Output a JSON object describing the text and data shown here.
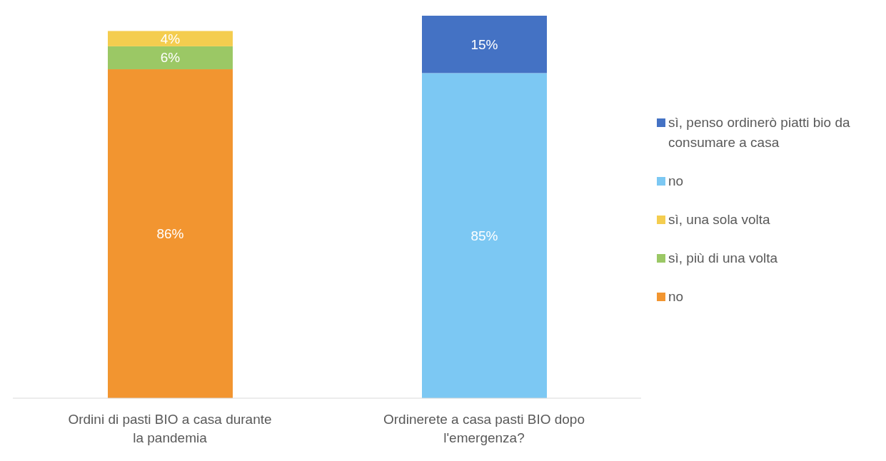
{
  "chart_data": {
    "type": "bar",
    "stacked": true,
    "categories": [
      "Ordini di pasti BIO a casa durante la pandemia",
      "Ordinerete a casa pasti BIO dopo l'emergenza?"
    ],
    "legend": "right",
    "series": [
      {
        "name": "no",
        "color": "#f29530",
        "values": [
          86,
          null
        ],
        "value_labels": [
          "86%",
          null
        ]
      },
      {
        "name": "sì, più di una volta",
        "color": "#9bc865",
        "values": [
          6,
          null
        ],
        "value_labels": [
          "6%",
          null
        ]
      },
      {
        "name": "sì, una sola volta",
        "color": "#f4cd4f",
        "values": [
          4,
          null
        ],
        "value_labels": [
          "4%",
          null
        ]
      },
      {
        "name": "no",
        "color": "#7cc8f3",
        "values": [
          null,
          85
        ],
        "value_labels": [
          null,
          "85%"
        ]
      },
      {
        "name": "sì, penso ordinerò piatti bio da consumare a casa",
        "color": "#4472c4",
        "values": [
          null,
          15
        ],
        "value_labels": [
          null,
          "15%"
        ]
      }
    ]
  }
}
